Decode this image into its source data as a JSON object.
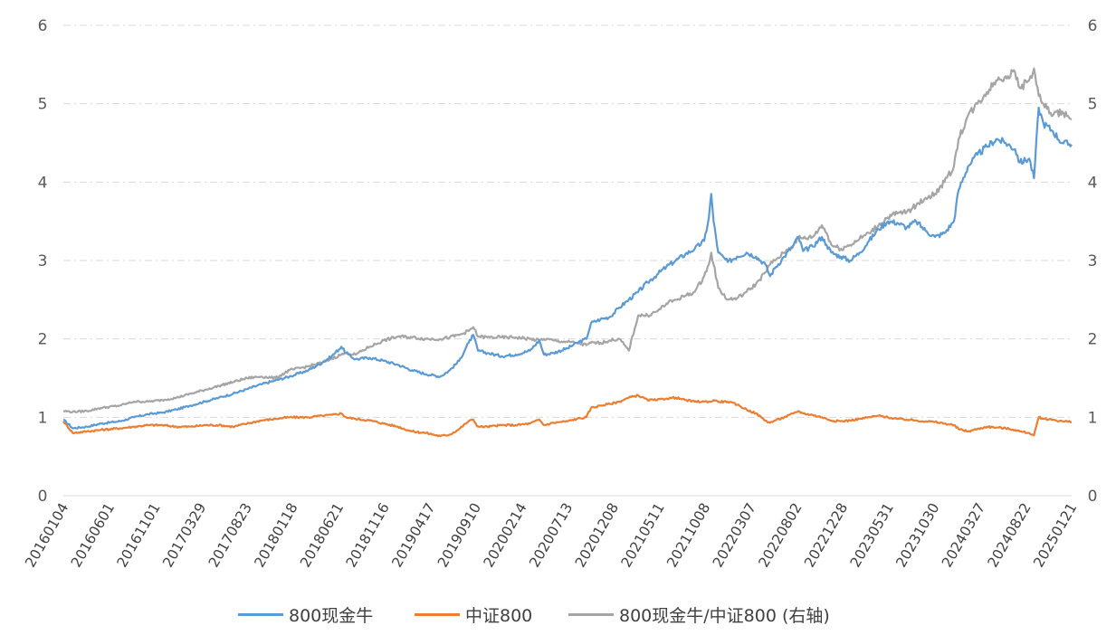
{
  "chart_data": {
    "type": "line",
    "title": "",
    "xlabel": "",
    "ylabel": "",
    "ylim_left": [
      0,
      6
    ],
    "ylim_right": [
      0,
      6
    ],
    "y_ticks_left": [
      "0",
      "1",
      "2",
      "3",
      "4",
      "5",
      "6"
    ],
    "y_ticks_right": [
      "0",
      "1",
      "2",
      "3",
      "4",
      "5",
      "6"
    ],
    "grid": "horizontal dash-dot",
    "legend_position": "bottom",
    "x_tick_labels": [
      "20160104",
      "20160601",
      "20161101",
      "20170329",
      "20170823",
      "20180118",
      "20180621",
      "20181116",
      "20190417",
      "20190910",
      "20200214",
      "20200713",
      "20201208",
      "20210511",
      "20211008",
      "20220307",
      "20220802",
      "20221228",
      "20230531",
      "20231030",
      "20240327",
      "20240822",
      "20250121"
    ],
    "series": [
      {
        "name": "800现金牛",
        "axis": "left",
        "color": "#5b9bd5",
        "values": [
          [
            0,
            0.97
          ],
          [
            2,
            0.86
          ],
          [
            5,
            0.88
          ],
          [
            8,
            0.92
          ],
          [
            12,
            0.95
          ],
          [
            15,
            1.0
          ],
          [
            18,
            1.04
          ],
          [
            21,
            1.06
          ],
          [
            24,
            1.1
          ],
          [
            27,
            1.15
          ],
          [
            30,
            1.2
          ],
          [
            33,
            1.25
          ],
          [
            36,
            1.3
          ],
          [
            39,
            1.36
          ],
          [
            42,
            1.42
          ],
          [
            45,
            1.47
          ],
          [
            48,
            1.52
          ],
          [
            52,
            1.6
          ],
          [
            55,
            1.7
          ],
          [
            57,
            1.78
          ],
          [
            59,
            1.9
          ],
          [
            60,
            1.82
          ],
          [
            62,
            1.74
          ],
          [
            65,
            1.76
          ],
          [
            68,
            1.72
          ],
          [
            71,
            1.67
          ],
          [
            74,
            1.6
          ],
          [
            77,
            1.55
          ],
          [
            80,
            1.52
          ],
          [
            82,
            1.6
          ],
          [
            84,
            1.72
          ],
          [
            86,
            1.95
          ],
          [
            87,
            2.05
          ],
          [
            88,
            1.85
          ],
          [
            90,
            1.82
          ],
          [
            93,
            1.78
          ],
          [
            96,
            1.8
          ],
          [
            99,
            1.85
          ],
          [
            101,
            1.98
          ],
          [
            102,
            1.8
          ],
          [
            104,
            1.82
          ],
          [
            107,
            1.88
          ],
          [
            109,
            1.95
          ],
          [
            111,
            2.0
          ],
          [
            112,
            2.2
          ],
          [
            114,
            2.25
          ],
          [
            116,
            2.28
          ],
          [
            118,
            2.4
          ],
          [
            120,
            2.5
          ],
          [
            122,
            2.6
          ],
          [
            124,
            2.72
          ],
          [
            126,
            2.82
          ],
          [
            128,
            2.92
          ],
          [
            130,
            3.0
          ],
          [
            132,
            3.08
          ],
          [
            134,
            3.15
          ],
          [
            136,
            3.25
          ],
          [
            137,
            3.55
          ],
          [
            137.5,
            3.85
          ],
          [
            138,
            3.5
          ],
          [
            139,
            3.1
          ],
          [
            141,
            2.98
          ],
          [
            143,
            3.05
          ],
          [
            145,
            3.1
          ],
          [
            147,
            3.05
          ],
          [
            149,
            2.95
          ],
          [
            150,
            2.8
          ],
          [
            151,
            2.9
          ],
          [
            153,
            3.05
          ],
          [
            155,
            3.2
          ],
          [
            156,
            3.3
          ],
          [
            157,
            3.12
          ],
          [
            159,
            3.18
          ],
          [
            161,
            3.3
          ],
          [
            162,
            3.2
          ],
          [
            163,
            3.1
          ],
          [
            165,
            3.05
          ],
          [
            167,
            3.0
          ],
          [
            169,
            3.1
          ],
          [
            171,
            3.25
          ],
          [
            173,
            3.4
          ],
          [
            175,
            3.5
          ],
          [
            177,
            3.48
          ],
          [
            179,
            3.42
          ],
          [
            181,
            3.5
          ],
          [
            183,
            3.38
          ],
          [
            185,
            3.3
          ],
          [
            187,
            3.35
          ],
          [
            189,
            3.5
          ],
          [
            190,
            3.9
          ],
          [
            192,
            4.2
          ],
          [
            194,
            4.35
          ],
          [
            196,
            4.45
          ],
          [
            198,
            4.55
          ],
          [
            200,
            4.5
          ],
          [
            202,
            4.42
          ],
          [
            203,
            4.25
          ],
          [
            205,
            4.3
          ],
          [
            206,
            4.05
          ],
          [
            207,
            4.95
          ],
          [
            208,
            4.75
          ],
          [
            210,
            4.65
          ],
          [
            212,
            4.5
          ],
          [
            214,
            4.48
          ]
        ]
      },
      {
        "name": "中证800",
        "axis": "left",
        "color": "#ed7d31",
        "values": [
          [
            0,
            0.95
          ],
          [
            2,
            0.8
          ],
          [
            5,
            0.82
          ],
          [
            8,
            0.84
          ],
          [
            12,
            0.86
          ],
          [
            15,
            0.88
          ],
          [
            18,
            0.9
          ],
          [
            21,
            0.9
          ],
          [
            24,
            0.88
          ],
          [
            27,
            0.88
          ],
          [
            30,
            0.9
          ],
          [
            33,
            0.9
          ],
          [
            36,
            0.88
          ],
          [
            39,
            0.92
          ],
          [
            42,
            0.96
          ],
          [
            45,
            0.98
          ],
          [
            48,
            1.0
          ],
          [
            52,
            1.0
          ],
          [
            55,
            1.02
          ],
          [
            57,
            1.03
          ],
          [
            59,
            1.05
          ],
          [
            60,
            1.0
          ],
          [
            62,
            0.98
          ],
          [
            65,
            0.96
          ],
          [
            68,
            0.92
          ],
          [
            71,
            0.88
          ],
          [
            74,
            0.82
          ],
          [
            77,
            0.8
          ],
          [
            80,
            0.76
          ],
          [
            82,
            0.78
          ],
          [
            84,
            0.85
          ],
          [
            86,
            0.95
          ],
          [
            87,
            0.97
          ],
          [
            88,
            0.88
          ],
          [
            90,
            0.88
          ],
          [
            93,
            0.9
          ],
          [
            96,
            0.9
          ],
          [
            99,
            0.92
          ],
          [
            101,
            0.97
          ],
          [
            102,
            0.9
          ],
          [
            104,
            0.93
          ],
          [
            107,
            0.95
          ],
          [
            109,
            0.98
          ],
          [
            111,
            1.0
          ],
          [
            112,
            1.12
          ],
          [
            114,
            1.15
          ],
          [
            116,
            1.17
          ],
          [
            118,
            1.2
          ],
          [
            120,
            1.25
          ],
          [
            122,
            1.28
          ],
          [
            124,
            1.22
          ],
          [
            126,
            1.22
          ],
          [
            128,
            1.24
          ],
          [
            130,
            1.25
          ],
          [
            132,
            1.22
          ],
          [
            134,
            1.2
          ],
          [
            136,
            1.2
          ],
          [
            137,
            1.2
          ],
          [
            137.5,
            1.2
          ],
          [
            138,
            1.22
          ],
          [
            139,
            1.2
          ],
          [
            141,
            1.2
          ],
          [
            143,
            1.16
          ],
          [
            145,
            1.1
          ],
          [
            147,
            1.05
          ],
          [
            149,
            0.96
          ],
          [
            150,
            0.93
          ],
          [
            151,
            0.96
          ],
          [
            153,
            1.0
          ],
          [
            155,
            1.05
          ],
          [
            156,
            1.08
          ],
          [
            157,
            1.05
          ],
          [
            159,
            1.03
          ],
          [
            161,
            1.0
          ],
          [
            162,
            0.98
          ],
          [
            163,
            0.96
          ],
          [
            165,
            0.95
          ],
          [
            167,
            0.96
          ],
          [
            169,
            0.98
          ],
          [
            171,
            1.0
          ],
          [
            173,
            1.02
          ],
          [
            175,
            1.0
          ],
          [
            177,
            0.98
          ],
          [
            179,
            0.97
          ],
          [
            181,
            0.96
          ],
          [
            183,
            0.95
          ],
          [
            185,
            0.94
          ],
          [
            187,
            0.92
          ],
          [
            189,
            0.9
          ],
          [
            190,
            0.85
          ],
          [
            192,
            0.82
          ],
          [
            194,
            0.85
          ],
          [
            196,
            0.88
          ],
          [
            198,
            0.87
          ],
          [
            200,
            0.86
          ],
          [
            202,
            0.84
          ],
          [
            203,
            0.82
          ],
          [
            205,
            0.8
          ],
          [
            206,
            0.77
          ],
          [
            207,
            1.0
          ],
          [
            208,
            0.98
          ],
          [
            210,
            0.97
          ],
          [
            212,
            0.95
          ],
          [
            214,
            0.94
          ]
        ]
      },
      {
        "name": "800现金牛/中证800 (右轴)",
        "axis": "right",
        "color": "#a5a5a5",
        "values": [
          [
            0,
            1.08
          ],
          [
            2,
            1.07
          ],
          [
            5,
            1.08
          ],
          [
            8,
            1.12
          ],
          [
            12,
            1.15
          ],
          [
            15,
            1.2
          ],
          [
            18,
            1.2
          ],
          [
            21,
            1.22
          ],
          [
            24,
            1.25
          ],
          [
            27,
            1.3
          ],
          [
            30,
            1.35
          ],
          [
            33,
            1.4
          ],
          [
            36,
            1.45
          ],
          [
            39,
            1.5
          ],
          [
            42,
            1.52
          ],
          [
            45,
            1.5
          ],
          [
            48,
            1.6
          ],
          [
            52,
            1.65
          ],
          [
            55,
            1.7
          ],
          [
            57,
            1.75
          ],
          [
            59,
            1.8
          ],
          [
            60,
            1.82
          ],
          [
            62,
            1.8
          ],
          [
            65,
            1.9
          ],
          [
            68,
            1.98
          ],
          [
            71,
            2.03
          ],
          [
            74,
            2.02
          ],
          [
            77,
            2.0
          ],
          [
            80,
            2.0
          ],
          [
            82,
            2.02
          ],
          [
            84,
            2.05
          ],
          [
            86,
            2.1
          ],
          [
            87,
            2.15
          ],
          [
            88,
            2.03
          ],
          [
            90,
            2.02
          ],
          [
            93,
            2.02
          ],
          [
            96,
            2.02
          ],
          [
            99,
            2.0
          ],
          [
            101,
            1.98
          ],
          [
            102,
            2.0
          ],
          [
            104,
            1.98
          ],
          [
            107,
            1.96
          ],
          [
            109,
            1.95
          ],
          [
            111,
            1.92
          ],
          [
            112,
            1.95
          ],
          [
            114,
            1.95
          ],
          [
            116,
            1.98
          ],
          [
            118,
            2.0
          ],
          [
            120,
            1.85
          ],
          [
            122,
            2.3
          ],
          [
            124,
            2.3
          ],
          [
            126,
            2.35
          ],
          [
            128,
            2.45
          ],
          [
            130,
            2.5
          ],
          [
            132,
            2.55
          ],
          [
            134,
            2.6
          ],
          [
            136,
            2.8
          ],
          [
            137,
            2.95
          ],
          [
            137.5,
            3.1
          ],
          [
            138,
            2.95
          ],
          [
            139,
            2.65
          ],
          [
            141,
            2.5
          ],
          [
            143,
            2.52
          ],
          [
            145,
            2.6
          ],
          [
            147,
            2.7
          ],
          [
            149,
            2.85
          ],
          [
            150,
            2.95
          ],
          [
            151,
            3.0
          ],
          [
            153,
            3.1
          ],
          [
            155,
            3.2
          ],
          [
            156,
            3.3
          ],
          [
            157,
            3.28
          ],
          [
            159,
            3.3
          ],
          [
            161,
            3.45
          ],
          [
            162,
            3.35
          ],
          [
            163,
            3.2
          ],
          [
            165,
            3.15
          ],
          [
            167,
            3.2
          ],
          [
            169,
            3.28
          ],
          [
            171,
            3.35
          ],
          [
            173,
            3.45
          ],
          [
            175,
            3.55
          ],
          [
            177,
            3.6
          ],
          [
            179,
            3.62
          ],
          [
            181,
            3.7
          ],
          [
            183,
            3.8
          ],
          [
            185,
            3.85
          ],
          [
            187,
            4.0
          ],
          [
            189,
            4.2
          ],
          [
            190,
            4.55
          ],
          [
            192,
            4.85
          ],
          [
            194,
            5.0
          ],
          [
            196,
            5.15
          ],
          [
            198,
            5.3
          ],
          [
            200,
            5.35
          ],
          [
            202,
            5.4
          ],
          [
            203,
            5.2
          ],
          [
            205,
            5.3
          ],
          [
            206,
            5.45
          ],
          [
            207,
            5.1
          ],
          [
            208,
            5.0
          ],
          [
            210,
            4.85
          ],
          [
            212,
            4.9
          ],
          [
            214,
            4.8
          ]
        ]
      }
    ]
  }
}
